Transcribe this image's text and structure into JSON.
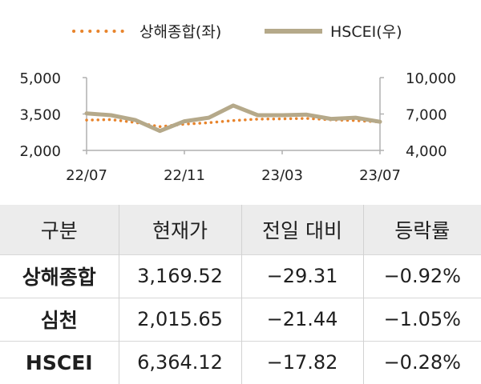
{
  "chart_data": {
    "type": "line",
    "legend_position": "top",
    "grid": false,
    "x_ticks": [
      "22/07",
      "22/11",
      "23/03",
      "23/07"
    ],
    "x_range": [
      "2022-07",
      "2023-07"
    ],
    "y_left": {
      "ticks": [
        "5,000",
        "3,500",
        "2,000"
      ],
      "range": [
        2000,
        5000
      ]
    },
    "y_right": {
      "ticks": [
        "10,000",
        "7,000",
        "4,000"
      ],
      "range": [
        4000,
        10000
      ]
    },
    "series": [
      {
        "name": "상해종합(좌)",
        "axis": "left",
        "style": "dotted",
        "color": "#e8842c",
        "x": [
          "2022-07",
          "2022-08",
          "2022-09",
          "2022-10",
          "2022-11",
          "2022-12",
          "2023-01",
          "2023-02",
          "2023-03",
          "2023-04",
          "2023-05",
          "2023-06",
          "2023-07"
        ],
        "values": [
          3250,
          3270,
          3150,
          2980,
          3080,
          3140,
          3230,
          3290,
          3300,
          3320,
          3260,
          3230,
          3170
        ]
      },
      {
        "name": "HSCEI(우)",
        "axis": "right",
        "style": "solid",
        "color": "#b5a98a",
        "x": [
          "2022-07",
          "2022-08",
          "2022-09",
          "2022-10",
          "2022-11",
          "2022-12",
          "2023-01",
          "2023-02",
          "2023-03",
          "2023-04",
          "2023-05",
          "2023-06",
          "2023-07"
        ],
        "values": [
          7050,
          6900,
          6500,
          5600,
          6400,
          6700,
          7700,
          6900,
          6900,
          6950,
          6600,
          6700,
          6360
        ]
      }
    ]
  },
  "table": {
    "headers": [
      "구분",
      "현재가",
      "전일 대비",
      "등락률"
    ],
    "rows": [
      {
        "name": "상해종합",
        "price": "3,169.52",
        "change": "−29.31",
        "rate": "−0.92%"
      },
      {
        "name": "심천",
        "price": "2,015.65",
        "change": "−21.44",
        "rate": "−1.05%"
      },
      {
        "name": "HSCEI",
        "price": "6,364.12",
        "change": "−17.82",
        "rate": "−0.28%"
      }
    ]
  }
}
